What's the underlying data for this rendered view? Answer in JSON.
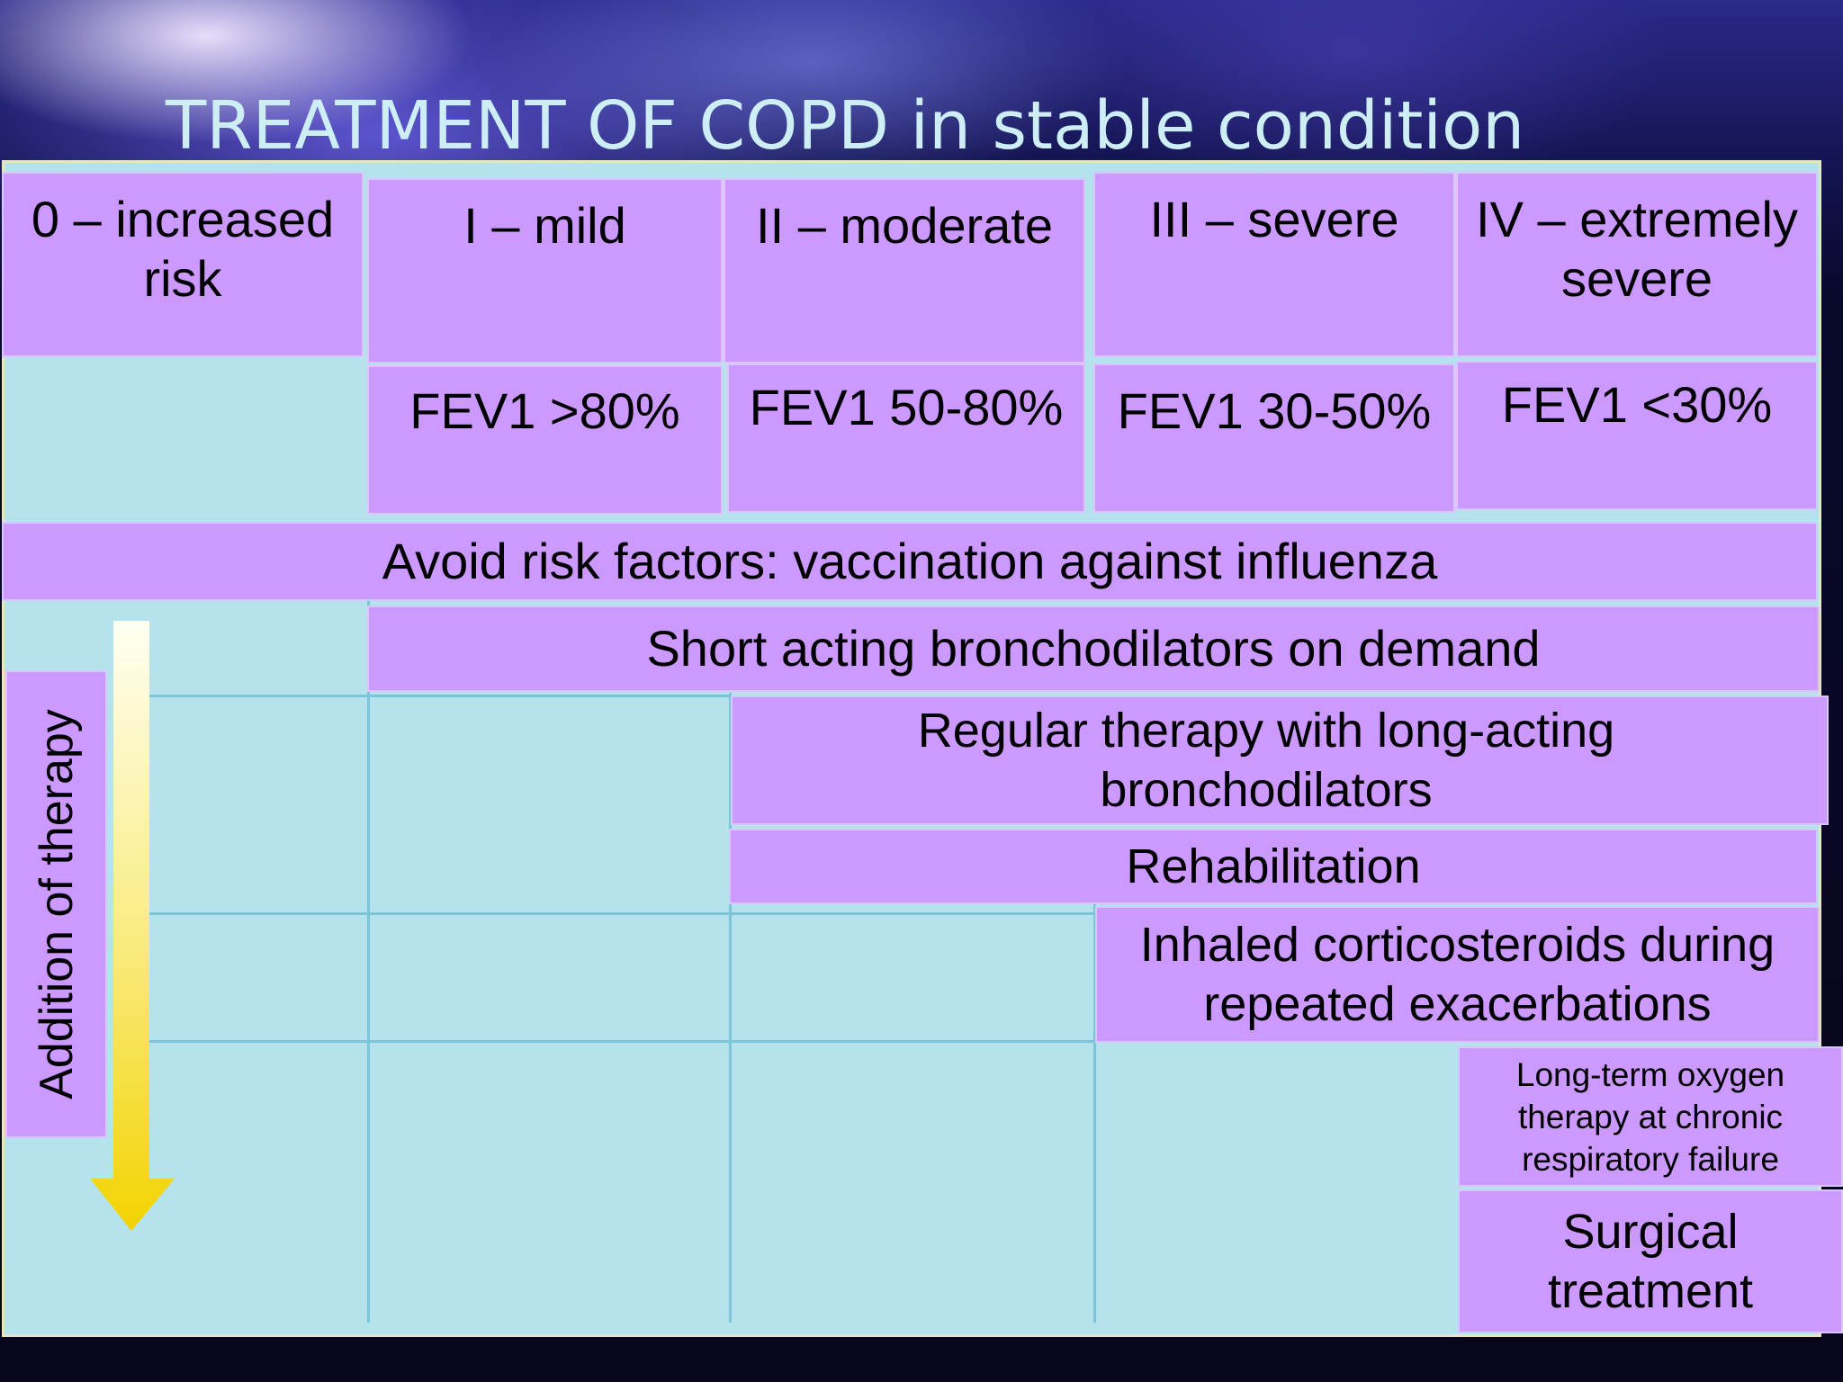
{
  "title": "TREATMENT OF COPD in stable condition",
  "stages": [
    {
      "label": "0 – increased risk",
      "fev1": ""
    },
    {
      "label": "I – mild",
      "fev1": "FEV1 >80%"
    },
    {
      "label": "II – moderate",
      "fev1": "FEV1 50-80%"
    },
    {
      "label": "III – severe",
      "fev1": "FEV1 30-50%"
    },
    {
      "label": "IV – extremely severe",
      "fev1": "FEV1 <30%"
    }
  ],
  "therapies": {
    "avoid_risk": "Avoid risk factors: vaccination against influenza",
    "short_acting": "Short acting bronchodilators on demand",
    "regular_therapy": "Regular therapy with long-acting bronchodilators",
    "rehabilitation": "Rehabilitation",
    "inhaled_corticosteroids": "Inhaled corticosteroids during repeated exacerbations",
    "oxygen_therapy": "Long-term oxygen therapy at chronic respiratory failure",
    "surgical": "Surgical treatment"
  },
  "side_label": "Addition of therapy",
  "colors": {
    "box": "#cc99ff",
    "table_background": "#b5e3ed",
    "title": "#cdeef5",
    "arrow": "#f5d800"
  }
}
